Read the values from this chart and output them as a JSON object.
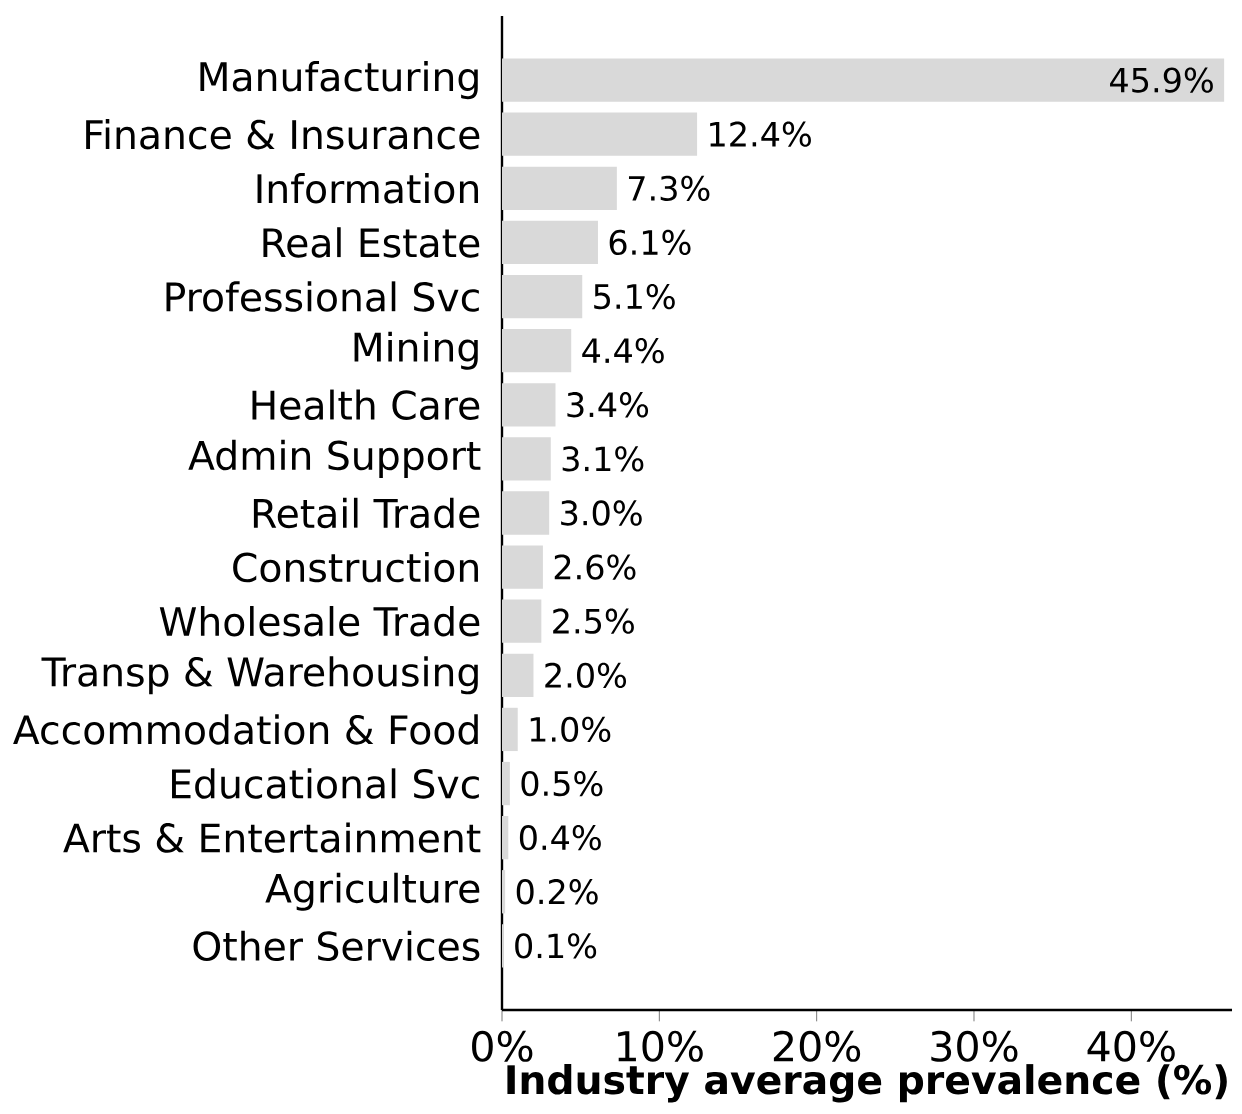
{
  "chart_data": {
    "type": "bar",
    "orientation": "horizontal",
    "xlabel": "Industry average prevalence (%)",
    "categories": [
      "Manufacturing",
      "Finance & Insurance",
      "Information",
      "Real Estate",
      "Professional Svc",
      "Mining",
      "Health Care",
      "Admin Support",
      "Retail Trade",
      "Construction",
      "Wholesale Trade",
      "Transp & Warehousing",
      "Accommodation & Food",
      "Educational Svc",
      "Arts & Entertainment",
      "Agriculture",
      "Other Services"
    ],
    "values": [
      45.9,
      12.4,
      7.3,
      6.1,
      5.1,
      4.4,
      3.4,
      3.1,
      3.0,
      2.6,
      2.5,
      2.0,
      1.0,
      0.5,
      0.4,
      0.2,
      0.1
    ],
    "value_labels": [
      "45.9%",
      "12.4%",
      "7.3%",
      "6.1%",
      "5.1%",
      "4.4%",
      "3.4%",
      "3.1%",
      "3.0%",
      "2.6%",
      "2.5%",
      "2.0%",
      "1.0%",
      "0.5%",
      "0.4%",
      "0.2%",
      "0.1%"
    ],
    "color": "#d9d9d9",
    "xlim": [
      0,
      46.4
    ],
    "xticks": [
      {
        "value": 0,
        "label": "0%"
      },
      {
        "value": 10,
        "label": "10%"
      },
      {
        "value": 20,
        "label": "20%"
      },
      {
        "value": 30,
        "label": "30%"
      },
      {
        "value": 40,
        "label": "40%"
      }
    ],
    "grid": false
  }
}
